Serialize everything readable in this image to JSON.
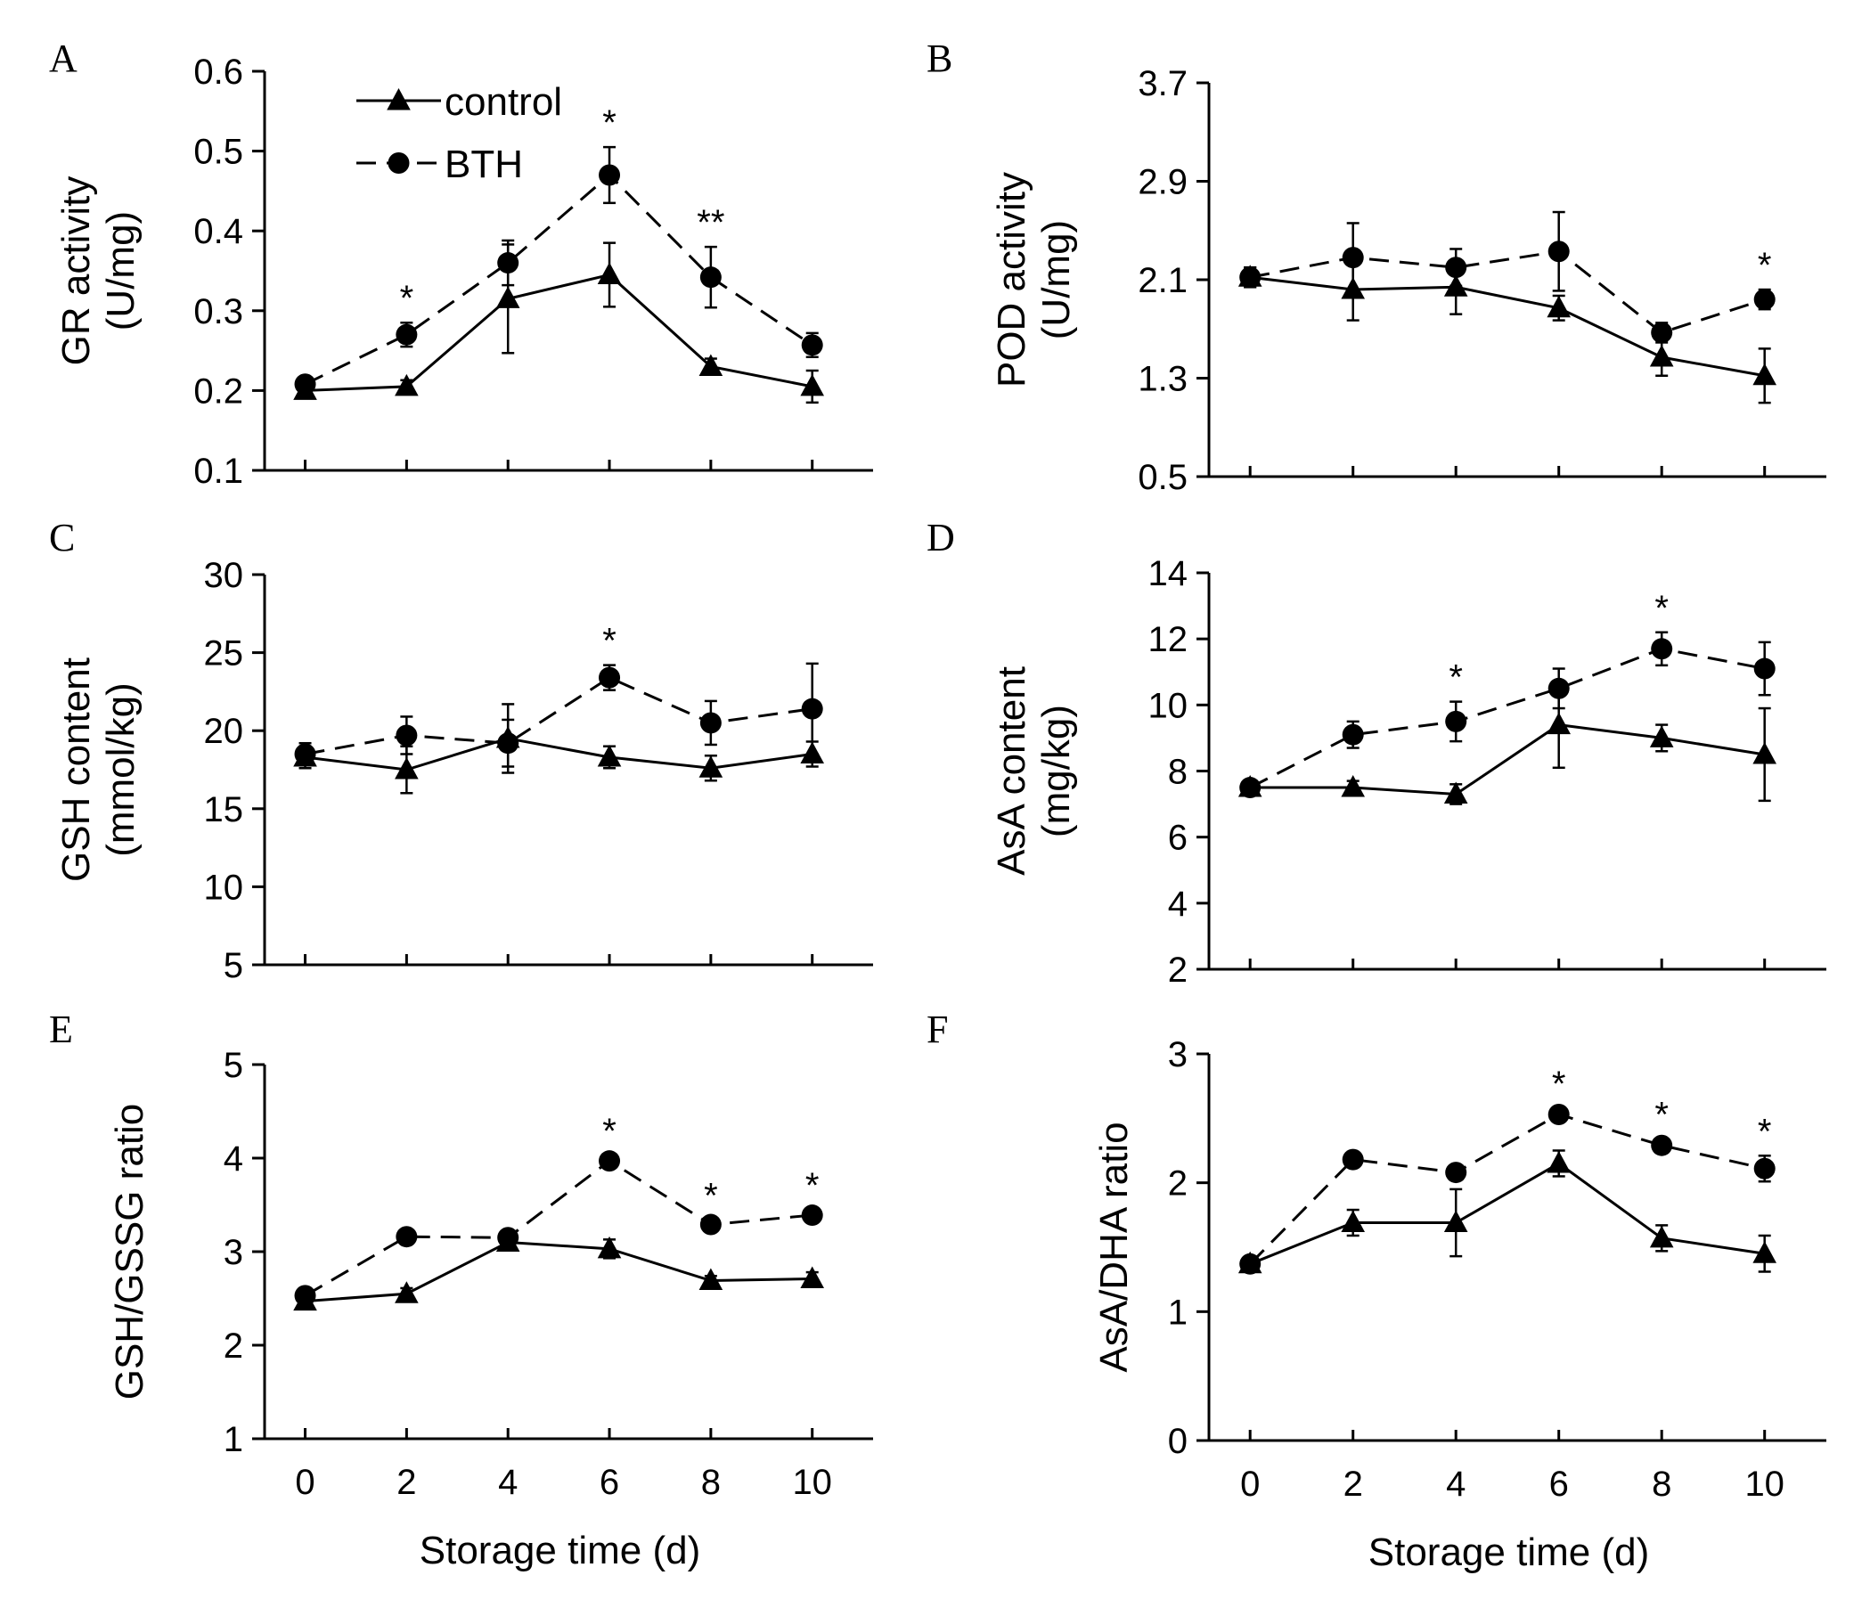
{
  "chart_data": [
    {
      "panel": "A",
      "type": "line",
      "ylabel_top": "GR activity",
      "ylabel_bottom": "(U/mg)",
      "xlabel": "",
      "ylim": [
        0.1,
        0.6
      ],
      "yticks": [
        0.1,
        0.2,
        0.3,
        0.4,
        0.5,
        0.6
      ],
      "ytick_labels": [
        "0.1",
        "0.2",
        "0.3",
        "0.4",
        "0.5",
        "0.6"
      ],
      "xticks": [
        0,
        2,
        4,
        6,
        8,
        10
      ],
      "xtick_labels": [],
      "legend": true,
      "series": [
        {
          "name": "control",
          "marker": "triangle",
          "style": "solid",
          "x": [
            0,
            2,
            4,
            6,
            8,
            10
          ],
          "y": [
            0.2,
            0.205,
            0.315,
            0.345,
            0.23,
            0.205
          ],
          "err": [
            0.008,
            0.008,
            0.068,
            0.04,
            0.01,
            0.02
          ]
        },
        {
          "name": "BTH",
          "marker": "circle",
          "style": "dashed",
          "x": [
            0,
            2,
            4,
            6,
            8,
            10
          ],
          "y": [
            0.208,
            0.27,
            0.36,
            0.47,
            0.342,
            0.257
          ],
          "err": [
            0.008,
            0.015,
            0.028,
            0.035,
            0.038,
            0.015
          ]
        }
      ],
      "annotations": [
        {
          "x": 2,
          "y": 0.27,
          "text": "*"
        },
        {
          "x": 6,
          "y": 0.47,
          "text": "*"
        },
        {
          "x": 8,
          "y": 0.342,
          "text": "**"
        }
      ]
    },
    {
      "panel": "B",
      "type": "line",
      "ylabel_top": "POD activity",
      "ylabel_bottom": "(U/mg)",
      "xlabel": "",
      "ylim": [
        0.5,
        3.7
      ],
      "yticks": [
        0.5,
        1.3,
        2.1,
        2.9,
        3.7
      ],
      "ytick_labels": [
        "0.5",
        "1.3",
        "2.1",
        "2.9",
        "3.7"
      ],
      "xticks": [
        0,
        2,
        4,
        6,
        8,
        10
      ],
      "xtick_labels": [],
      "legend": false,
      "series": [
        {
          "name": "control",
          "marker": "triangle",
          "style": "solid",
          "x": [
            0,
            2,
            4,
            6,
            8,
            10
          ],
          "y": [
            2.12,
            2.02,
            2.04,
            1.87,
            1.47,
            1.32
          ],
          "err": [
            0.08,
            0.25,
            0.22,
            0.1,
            0.15,
            0.22
          ]
        },
        {
          "name": "BTH",
          "marker": "circle",
          "style": "dashed",
          "x": [
            0,
            2,
            4,
            6,
            8,
            10
          ],
          "y": [
            2.12,
            2.28,
            2.2,
            2.33,
            1.67,
            1.94
          ],
          "err": [
            0.08,
            0.28,
            0.15,
            0.32,
            0.08,
            0.08
          ]
        }
      ],
      "annotations": [
        {
          "x": 10,
          "y": 1.94,
          "text": "*"
        }
      ]
    },
    {
      "panel": "C",
      "type": "line",
      "ylabel_top": "GSH content",
      "ylabel_bottom": "(mmol/kg)",
      "xlabel": "",
      "ylim": [
        5,
        30
      ],
      "yticks": [
        5,
        10,
        15,
        20,
        25,
        30
      ],
      "ytick_labels": [
        "5",
        "10",
        "15",
        "20",
        "25",
        "30"
      ],
      "xticks": [
        0,
        2,
        4,
        6,
        8,
        10
      ],
      "xtick_labels": [],
      "legend": false,
      "series": [
        {
          "name": "control",
          "marker": "triangle",
          "style": "solid",
          "x": [
            0,
            2,
            4,
            6,
            8,
            10
          ],
          "y": [
            18.3,
            17.5,
            19.5,
            18.3,
            17.6,
            18.5
          ],
          "err": [
            0.7,
            1.5,
            2.2,
            0.7,
            0.8,
            0.8
          ]
        },
        {
          "name": "BTH",
          "marker": "circle",
          "style": "dashed",
          "x": [
            0,
            2,
            4,
            6,
            8,
            10
          ],
          "y": [
            18.5,
            19.7,
            19.2,
            23.4,
            20.5,
            21.4
          ],
          "err": [
            0.7,
            1.2,
            1.5,
            0.8,
            1.4,
            2.9
          ]
        }
      ],
      "annotations": [
        {
          "x": 6,
          "y": 23.4,
          "text": "*"
        }
      ]
    },
    {
      "panel": "D",
      "type": "line",
      "ylabel_top": "AsA content",
      "ylabel_bottom": "(mg/kg)",
      "xlabel": "",
      "ylim": [
        2,
        14
      ],
      "yticks": [
        2,
        4,
        6,
        8,
        10,
        12,
        14
      ],
      "ytick_labels": [
        "2",
        "4",
        "6",
        "8",
        "10",
        "12",
        "14"
      ],
      "xticks": [
        0,
        2,
        4,
        6,
        8,
        10
      ],
      "xtick_labels": [],
      "legend": false,
      "series": [
        {
          "name": "control",
          "marker": "triangle",
          "style": "solid",
          "x": [
            0,
            2,
            4,
            6,
            8,
            10
          ],
          "y": [
            7.5,
            7.5,
            7.3,
            9.4,
            9.0,
            8.5
          ],
          "err": [
            0.2,
            0.2,
            0.3,
            1.3,
            0.4,
            1.4
          ]
        },
        {
          "name": "BTH",
          "marker": "circle",
          "style": "dashed",
          "x": [
            0,
            2,
            4,
            6,
            8,
            10
          ],
          "y": [
            7.5,
            9.1,
            9.5,
            10.5,
            11.7,
            11.1
          ],
          "err": [
            0.2,
            0.4,
            0.6,
            0.6,
            0.5,
            0.8
          ]
        }
      ],
      "annotations": [
        {
          "x": 4,
          "y": 9.5,
          "text": "*"
        },
        {
          "x": 8,
          "y": 11.7,
          "text": "*"
        }
      ]
    },
    {
      "panel": "E",
      "type": "line",
      "ylabel_top": "GSH/GSSG ratio",
      "ylabel_bottom": "",
      "xlabel": "Storage time (d)",
      "ylim": [
        1,
        5
      ],
      "yticks": [
        1,
        2,
        3,
        4,
        5
      ],
      "ytick_labels": [
        "1",
        "2",
        "3",
        "4",
        "5"
      ],
      "xticks": [
        0,
        2,
        4,
        6,
        8,
        10
      ],
      "xtick_labels": [
        "0",
        "2",
        "4",
        "6",
        "8",
        "10"
      ],
      "legend": false,
      "series": [
        {
          "name": "control",
          "marker": "triangle",
          "style": "solid",
          "x": [
            0,
            2,
            4,
            6,
            8,
            10
          ],
          "y": [
            2.47,
            2.55,
            3.1,
            3.03,
            2.69,
            2.71
          ],
          "err": [
            0.05,
            0.06,
            0.05,
            0.1,
            0.05,
            0.07
          ]
        },
        {
          "name": "BTH",
          "marker": "circle",
          "style": "dashed",
          "x": [
            0,
            2,
            4,
            6,
            8,
            10
          ],
          "y": [
            2.53,
            3.16,
            3.15,
            3.97,
            3.29,
            3.39
          ],
          "err": [
            0.04,
            0.04,
            0.05,
            0.06,
            0.05,
            0.06
          ]
        }
      ],
      "annotations": [
        {
          "x": 6,
          "y": 3.97,
          "text": "*"
        },
        {
          "x": 8,
          "y": 3.29,
          "text": "*"
        },
        {
          "x": 10,
          "y": 3.39,
          "text": "*"
        }
      ]
    },
    {
      "panel": "F",
      "type": "line",
      "ylabel_top": "AsA/DHA ratio",
      "ylabel_bottom": "",
      "xlabel": "Storage time (d)",
      "ylim": [
        0,
        3
      ],
      "yticks": [
        0,
        1,
        2,
        3
      ],
      "ytick_labels": [
        "0",
        "1",
        "2",
        "3"
      ],
      "xticks": [
        0,
        2,
        4,
        6,
        8,
        10
      ],
      "xtick_labels": [
        "0",
        "2",
        "4",
        "6",
        "8",
        "10"
      ],
      "legend": false,
      "series": [
        {
          "name": "control",
          "marker": "triangle",
          "style": "solid",
          "x": [
            0,
            2,
            4,
            6,
            8,
            10
          ],
          "y": [
            1.37,
            1.69,
            1.69,
            2.15,
            1.57,
            1.45
          ],
          "err": [
            0.05,
            0.1,
            0.26,
            0.1,
            0.1,
            0.14
          ]
        },
        {
          "name": "BTH",
          "marker": "circle",
          "style": "dashed",
          "x": [
            0,
            2,
            4,
            6,
            8,
            10
          ],
          "y": [
            1.37,
            2.18,
            2.08,
            2.53,
            2.29,
            2.11
          ],
          "err": [
            0.05,
            0.06,
            0.05,
            0.05,
            0.05,
            0.1
          ]
        }
      ],
      "annotations": [
        {
          "x": 6,
          "y": 2.53,
          "text": "*"
        },
        {
          "x": 8,
          "y": 2.29,
          "text": "*"
        },
        {
          "x": 10,
          "y": 2.11,
          "text": "*"
        }
      ]
    }
  ]
}
